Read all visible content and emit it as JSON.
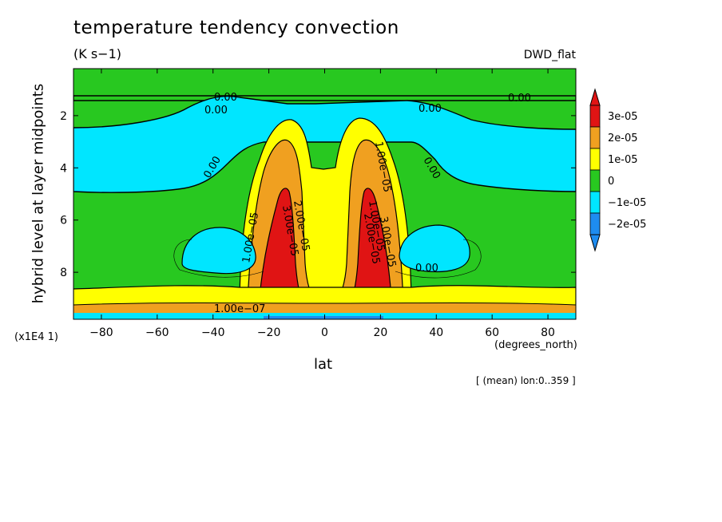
{
  "title": "temperature tendency convection",
  "units": "(K s−1)",
  "dataset": "DWD_flat",
  "y_scale_note": "(x1E4 1)",
  "x_units": "(degrees_north)",
  "footnote": "[ (mean) lon:0..359 ]",
  "chart_data": {
    "type": "heatmap",
    "title": "temperature tendency convection",
    "xlabel": "lat",
    "ylabel": "hybrid level at layer midpoints",
    "xlim": [
      -90,
      90
    ],
    "ylim": [
      9.8,
      0.2
    ],
    "y_inverted": true,
    "x_ticks": [
      -80,
      -60,
      -40,
      -20,
      0,
      20,
      40,
      60,
      80
    ],
    "y_ticks": [
      2,
      4,
      6,
      8
    ],
    "colorbar": {
      "levels": [
        "3e-05",
        "2e-05",
        "1e-05",
        "0",
        "−1e-05",
        "−2e-05"
      ],
      "colors": [
        "#e01414",
        "#f0a020",
        "#ffff00",
        "#28c820",
        "#00e6ff",
        "#1e8cf0"
      ],
      "extend": "both"
    },
    "contour_labels": [
      "0.00",
      "0.00",
      "0.00",
      "0.00",
      "0.00",
      "0.00",
      "0.00",
      "1.00e−05",
      "1.00e−05",
      "1.00e−05",
      "2.00e−05",
      "3.00e−05",
      "2.00e−05",
      "3.00e−05",
      "1.00e−07"
    ]
  }
}
